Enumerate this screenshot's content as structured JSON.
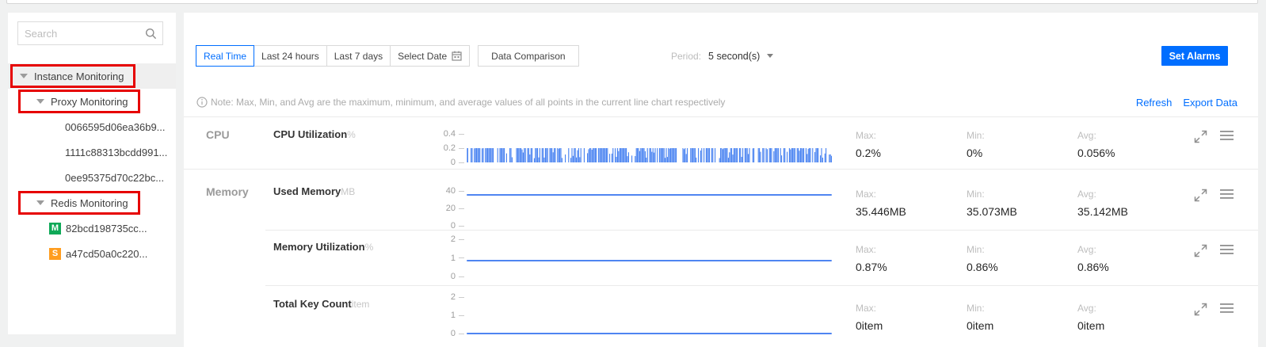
{
  "colors": {
    "accent": "#006eff",
    "annotation": "#e60000",
    "chart_line": "#4f85f1",
    "chart_spikes": "#3c7af0",
    "badge_master": "#0fa958",
    "badge_slave": "#ff9d1f"
  },
  "sidebar": {
    "search": {
      "placeholder": "Search"
    },
    "tree": [
      {
        "label": "Instance Monitoring",
        "level": 0,
        "caret": true,
        "selected": true,
        "annotated": true
      },
      {
        "label": "Proxy Monitoring",
        "level": 1,
        "caret": true,
        "annotated": true
      },
      {
        "label": "0066595d06ea36b9...",
        "level": 2
      },
      {
        "label": "1111c88313bcdd991...",
        "level": 2
      },
      {
        "label": "0ee95375d70c22bc...",
        "level": 2
      },
      {
        "label": "Redis Monitoring",
        "level": 1,
        "caret": true,
        "annotated": true
      },
      {
        "label": "82bcd198735cc...",
        "level": 2,
        "badge": {
          "text": "M",
          "color": "#0fa958"
        }
      },
      {
        "label": "a47cd50a0c220...",
        "level": 2,
        "badge": {
          "text": "S",
          "color": "#ff9d1f"
        }
      }
    ]
  },
  "toolbar": {
    "time_tabs": [
      {
        "label": "Real Time",
        "active": true
      },
      {
        "label": "Last 24 hours",
        "active": false
      },
      {
        "label": "Last 7 days",
        "active": false
      },
      {
        "label": "Select Date",
        "active": false,
        "icon": "calendar-icon"
      }
    ],
    "data_comparison": "Data Comparison",
    "period": {
      "label": "Period:",
      "value": "5 second(s)"
    },
    "set_alarms": "Set Alarms"
  },
  "note_bar": {
    "note": "Note: Max, Min, and Avg are the maximum, minimum, and average values of all points in the current line chart respectively",
    "refresh": "Refresh",
    "export": "Export Data"
  },
  "stats_labels": {
    "max": "Max:",
    "min": "Min:",
    "avg": "Avg:"
  },
  "chart_data": [
    {
      "type": "area",
      "section": "CPU",
      "metric": "CPU Utilization",
      "unit": "%",
      "y_ticks": [
        "0.4",
        "0.2",
        "0"
      ],
      "y_max": 0.4,
      "series_style": "dense-spikes",
      "series_peak": 0.2,
      "series_min": 0,
      "stats": {
        "max": "0.2%",
        "min": "0%",
        "avg": "0.056%"
      }
    },
    {
      "type": "line",
      "section": "Memory",
      "metric": "Used Memory",
      "unit": "MB",
      "y_ticks": [
        "40",
        "20",
        "0"
      ],
      "y_max": 40,
      "series_style": "flat-line",
      "series_level": 35.142,
      "stats": {
        "max": "35.446MB",
        "min": "35.073MB",
        "avg": "35.142MB"
      }
    },
    {
      "type": "line",
      "section": "",
      "metric": "Memory Utilization",
      "unit": "%",
      "y_ticks": [
        "2",
        "1",
        "0"
      ],
      "y_max": 2,
      "series_style": "flat-line",
      "series_level": 0.86,
      "stats": {
        "max": "0.87%",
        "min": "0.86%",
        "avg": "0.86%"
      }
    },
    {
      "type": "line",
      "section": "",
      "metric": "Total Key Count",
      "unit": "item",
      "y_ticks": [
        "2",
        "1",
        "0"
      ],
      "y_max": 2,
      "series_style": "flat-line",
      "series_level": 0,
      "stats": {
        "max": "0item",
        "min": "0item",
        "avg": "0item"
      }
    }
  ]
}
